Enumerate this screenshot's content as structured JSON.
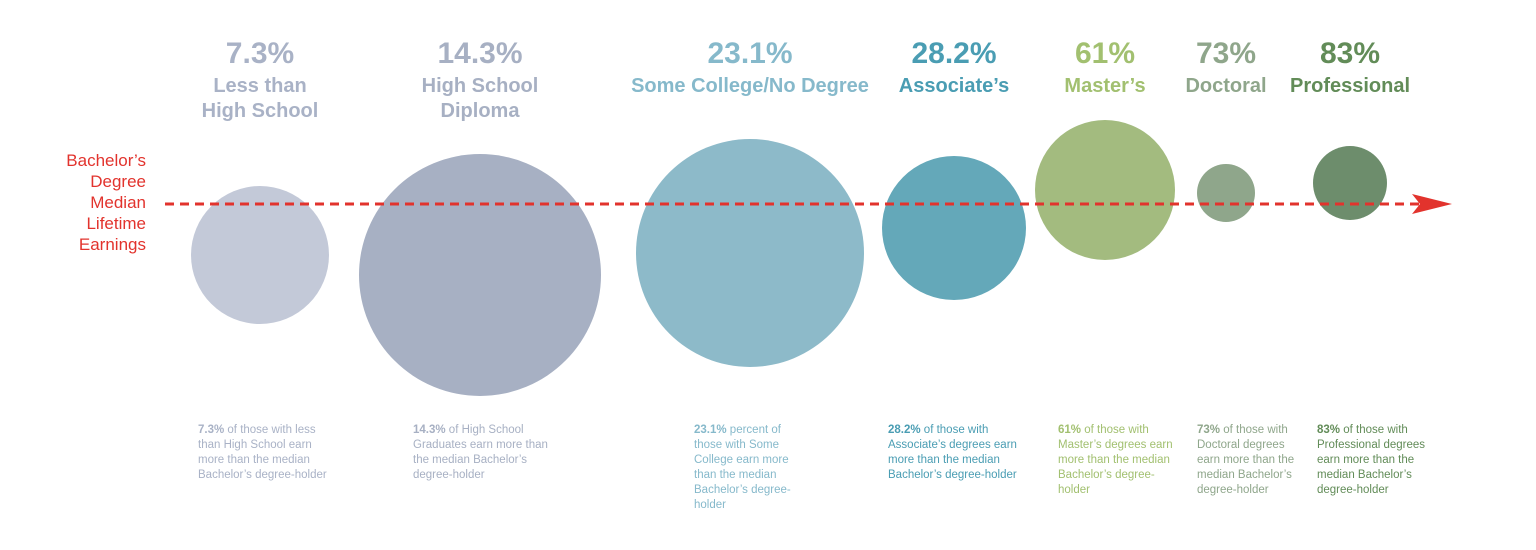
{
  "reference": {
    "label_lines": [
      "Bachelor’s",
      "Degree",
      "Median",
      "Lifetime",
      "Earnings"
    ],
    "color": "#e2332d"
  },
  "chart_data": {
    "type": "bubble",
    "title": "",
    "categories": [
      "Less than High School",
      "High School Diploma",
      "Some College/No Degree",
      "Associate’s",
      "Master’s",
      "Doctoral",
      "Professional"
    ],
    "values": [
      7.3,
      14.3,
      23.1,
      28.2,
      61,
      73,
      83
    ],
    "unit": "% earning more than the median Bachelor’s degree-holder",
    "items": [
      {
        "pct": "7.3%",
        "title1": "Less than",
        "title2": "High School",
        "color": "#c3c9d8",
        "title_color": "#a9b2c6",
        "desc_bold": "7.3%",
        "desc_rest": " of those with less than High School earn more than the median Bachelor’s degree-holder"
      },
      {
        "pct": "14.3%",
        "title1": "High School",
        "title2": "Diploma",
        "color": "#a7b0c3",
        "title_color": "#a7b0c3",
        "desc_bold": "14.3%",
        "desc_rest": " of High School Graduates earn more than the median Bachelor’s degree-holder"
      },
      {
        "pct": "23.1%",
        "title1": "Some College/No Degree",
        "title2": "",
        "color": "#8dbac9",
        "title_color": "#86b9cb",
        "desc_bold": "23.1%",
        "desc_rest": " percent of those with Some College earn more than the median Bachelor’s degree-holder"
      },
      {
        "pct": "28.2%",
        "title1": "Associate’s",
        "title2": "",
        "color": "#64a8b9",
        "title_color": "#4a9db3",
        "desc_bold": "28.2%",
        "desc_rest": " of those with Associate’s degrees earn more than the median Bachelor’s degree-holder"
      },
      {
        "pct": "61%",
        "title1": "Master’s",
        "title2": "",
        "color": "#a3bb7f",
        "title_color": "#a2c070",
        "desc_bold": "61%",
        "desc_rest": " of those with Master’s degrees earn more than the median Bachelor’s degree-holder"
      },
      {
        "pct": "73%",
        "title1": "Doctoral",
        "title2": "",
        "color": "#8fa68b",
        "title_color": "#8fa68b",
        "desc_bold": "73%",
        "desc_rest": " of those with Doctoral degrees earn more than the median Bachelor’s degree-holder"
      },
      {
        "pct": "83%",
        "title1": "Professional",
        "title2": "",
        "color": "#6d8d6c",
        "title_color": "#628c58",
        "desc_bold": "83%",
        "desc_rest": " of those with Professional degrees earn more than the median Bachelor’s degree-holder"
      }
    ]
  }
}
